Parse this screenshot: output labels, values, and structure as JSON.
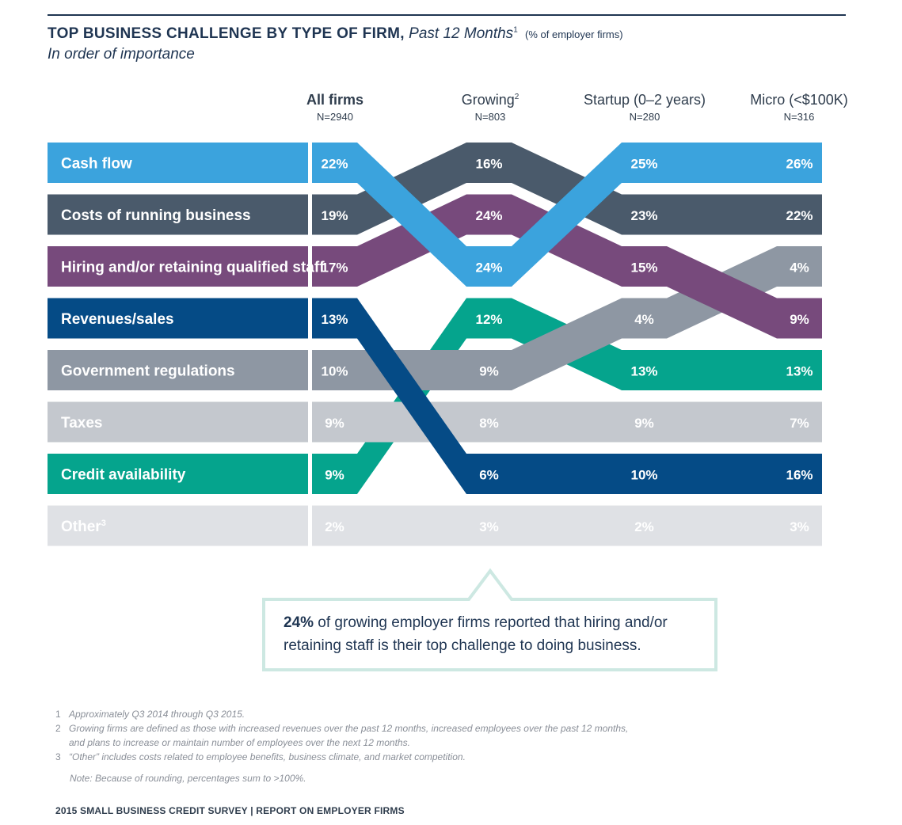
{
  "title": {
    "main": "TOP BUSINESS CHALLENGE BY TYPE OF FIRM,",
    "period": "Past 12 Months",
    "period_sup": "1",
    "unit": "(% of employer firms)",
    "subtitle": "In order of importance"
  },
  "columns": [
    {
      "name": "All firms",
      "sup": "",
      "n": "N=2940"
    },
    {
      "name": "Growing",
      "sup": "2",
      "n": "N=803"
    },
    {
      "name": "Startup (0–2 years)",
      "sup": "",
      "n": "N=280"
    },
    {
      "name": "Micro (<$100K)",
      "sup": "",
      "n": "N=316"
    }
  ],
  "chart_data": {
    "type": "table",
    "unit": "% of employer firms",
    "categories": [
      "All firms",
      "Growing",
      "Startup (0–2 years)",
      "Micro (<$100K)"
    ],
    "series": [
      {
        "name": "Cash flow",
        "sup": "",
        "values": [
          22,
          24,
          25,
          26
        ],
        "color": "#3ba3dd",
        "text_color": "#ffffff"
      },
      {
        "name": "Costs of running business",
        "sup": "",
        "values": [
          19,
          16,
          23,
          22
        ],
        "color": "#4a5a6b",
        "text_color": "#ffffff"
      },
      {
        "name": "Hiring and/or retaining qualified staff",
        "sup": "",
        "values": [
          17,
          24,
          15,
          9
        ],
        "color": "#774a7c",
        "text_color": "#ffffff"
      },
      {
        "name": "Revenues/sales",
        "sup": "",
        "values": [
          13,
          6,
          10,
          16
        ],
        "color": "#054b86",
        "text_color": "#ffffff"
      },
      {
        "name": "Government regulations",
        "sup": "",
        "values": [
          10,
          9,
          4,
          4
        ],
        "color": "#8e97a3",
        "text_color": "#ffffff"
      },
      {
        "name": "Taxes",
        "sup": "",
        "values": [
          9,
          8,
          9,
          7
        ],
        "color": "#c4c8ce",
        "text_color": "#ffffff"
      },
      {
        "name": "Credit availability",
        "sup": "",
        "values": [
          9,
          12,
          13,
          13
        ],
        "color": "#05a48d",
        "text_color": "#ffffff"
      },
      {
        "name": "Other",
        "sup": "3",
        "values": [
          2,
          3,
          2,
          3
        ],
        "color": "#dfe1e5",
        "text_color": "#ffffff"
      }
    ],
    "rank_rows": [
      [
        0,
        2,
        0,
        0
      ],
      [
        1,
        0,
        1,
        1
      ],
      [
        2,
        1,
        2,
        3
      ],
      [
        3,
        6,
        6,
        6
      ],
      [
        4,
        4,
        3,
        2
      ],
      [
        5,
        5,
        5,
        5
      ],
      [
        6,
        3,
        4,
        4
      ],
      [
        7,
        7,
        7,
        7
      ]
    ]
  },
  "callout": {
    "highlight": "24%",
    "text": " of growing employer firms reported that hiring and/or retaining staff is their top challenge to doing business.",
    "border_color": "#cde8e2"
  },
  "notes": [
    {
      "num": "1",
      "text": "Approximately Q3 2014 through Q3 2015."
    },
    {
      "num": "2",
      "text": "Growing firms are defined as those with increased revenues over the past 12 months, increased employees over the past 12 months,"
    },
    {
      "num": "",
      "text": "and plans to increase or maintain number of employees over the next 12 months."
    },
    {
      "num": "3",
      "text": "“Other” includes costs related to employee benefits, business climate, and market competition."
    }
  ],
  "note_rounding": "Note: Because of rounding, percentages sum to >100%.",
  "footer": "2015 SMALL BUSINESS CREDIT SURVEY  |  REPORT ON EMPLOYER FIRMS"
}
